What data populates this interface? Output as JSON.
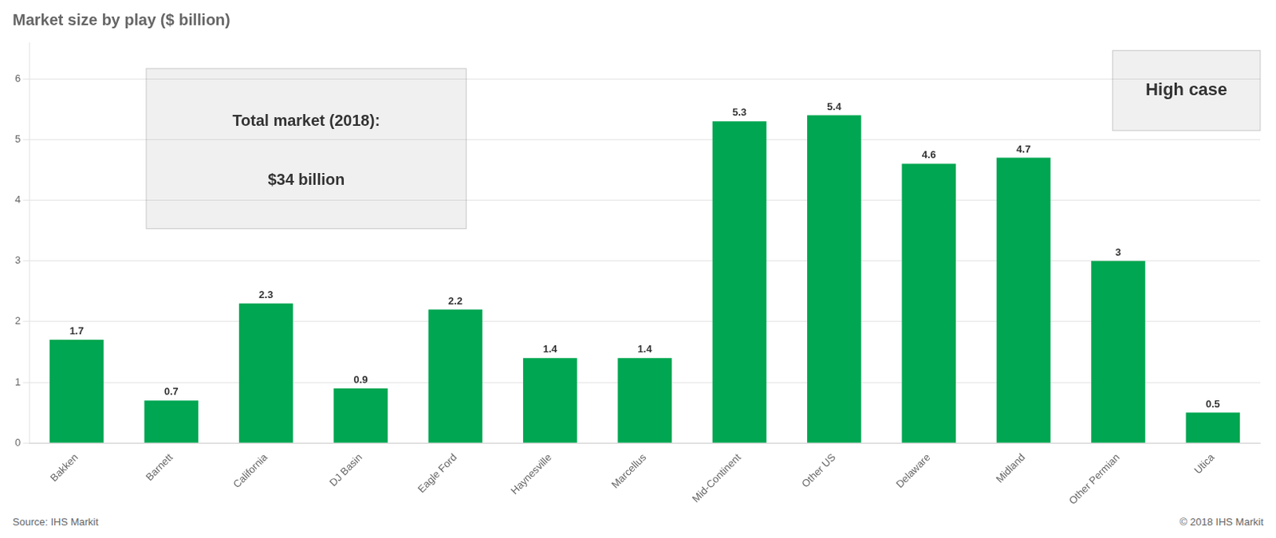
{
  "chart_data": {
    "type": "bar",
    "title": "Market size by play ($ billion)",
    "categories": [
      "Bakken",
      "Barnett",
      "California",
      "DJ Basin",
      "Eagle Ford",
      "Haynesville",
      "Marcellus",
      "Mid-Continent",
      "Other US",
      "Delaware",
      "Midland",
      "Other Permian",
      "Utica"
    ],
    "values": [
      1.7,
      0.7,
      2.3,
      0.9,
      2.2,
      1.4,
      1.4,
      5.3,
      5.4,
      4.6,
      4.7,
      3.0,
      0.5
    ],
    "color": "#00a651",
    "ylim": [
      0,
      6.6
    ],
    "yticks": [
      0,
      1,
      2,
      3,
      4,
      5,
      6
    ],
    "grid": true,
    "data_labels": true,
    "annotations": [
      "Total market (2018):",
      "$34 billion",
      "High case"
    ],
    "source": "Source: IHS Markit",
    "copyright": "© 2018 IHS Markit"
  }
}
